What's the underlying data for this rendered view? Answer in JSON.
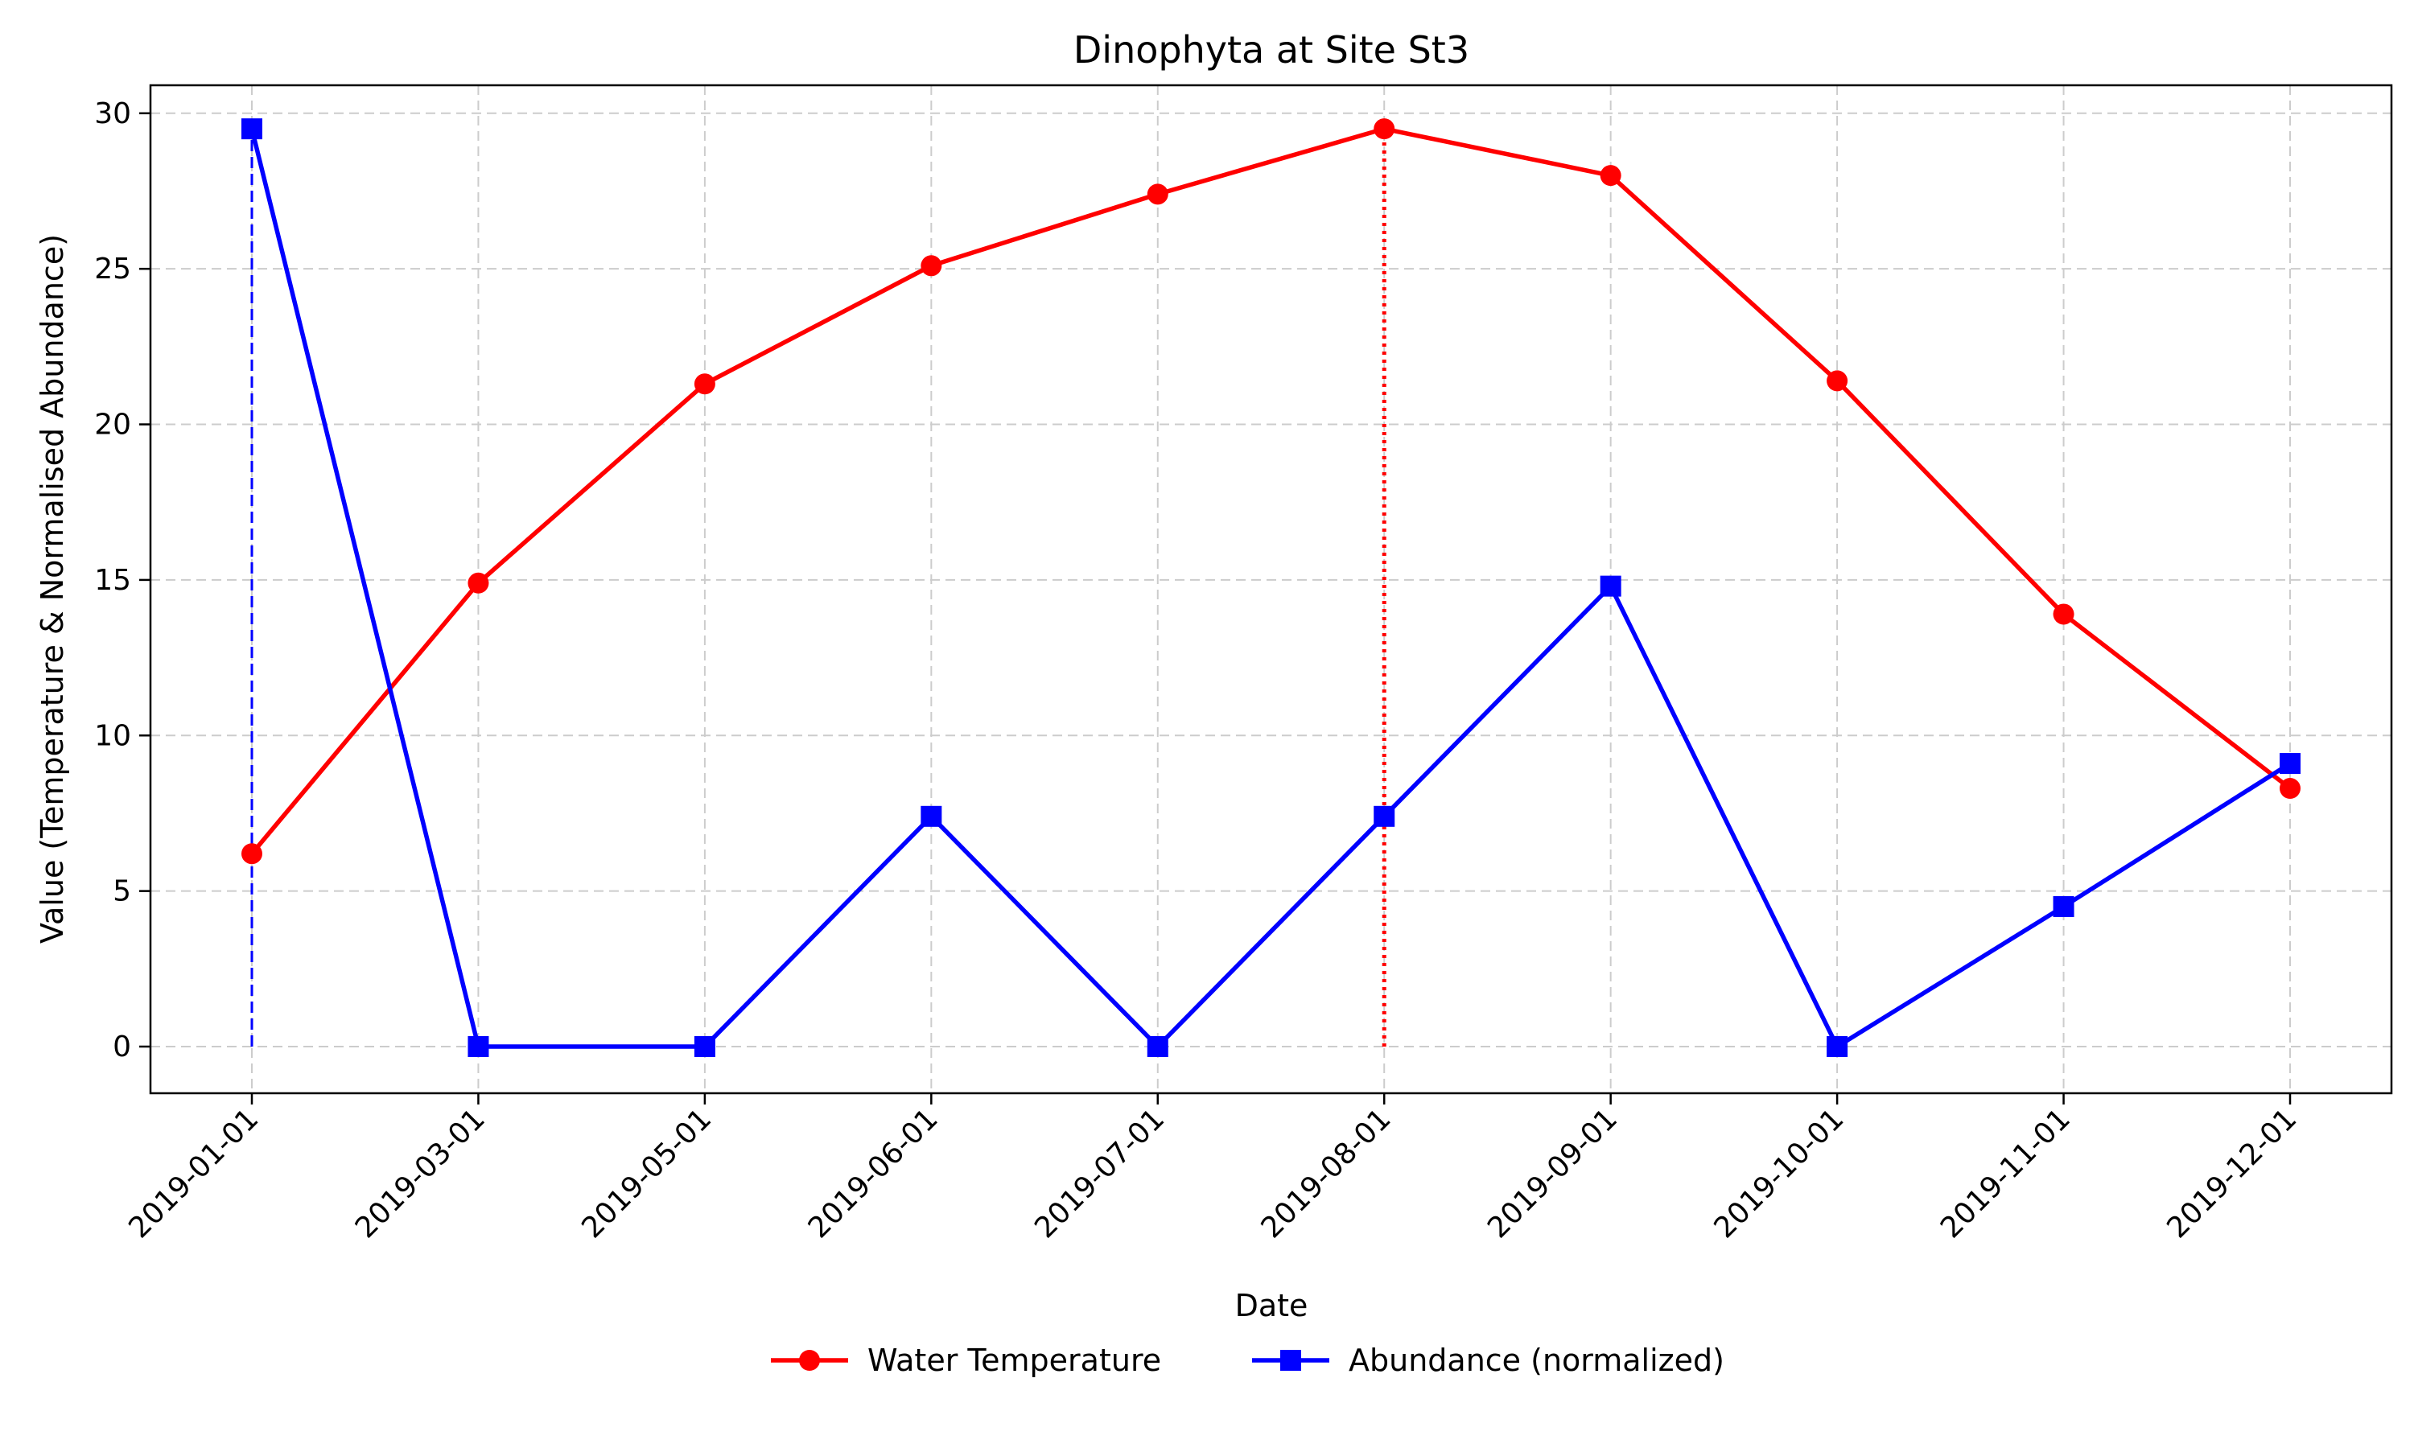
{
  "chart_data": {
    "type": "line",
    "title": "Dinophyta at Site St3",
    "xlabel": "Date",
    "ylabel": "Value (Temperature & Normalised Abundance)",
    "categories": [
      "2019-01-01",
      "2019-03-01",
      "2019-05-01",
      "2019-06-01",
      "2019-07-01",
      "2019-08-01",
      "2019-09-01",
      "2019-10-01",
      "2019-11-01",
      "2019-12-01"
    ],
    "ylim": [
      -1.5,
      30.9
    ],
    "yticks": [
      0,
      5,
      10,
      15,
      20,
      25,
      30
    ],
    "grid": true,
    "legend_position": "bottom-center",
    "series": [
      {
        "name": "Water Temperature",
        "color": "#ff0000",
        "marker": "circle",
        "values": [
          6.2,
          14.9,
          21.3,
          25.1,
          27.4,
          29.5,
          28.0,
          21.4,
          13.9,
          8.3
        ]
      },
      {
        "name": "Abundance (normalized)",
        "color": "#0000ff",
        "marker": "square",
        "values": [
          29.5,
          0.0,
          0.0,
          7.4,
          0.0,
          7.4,
          14.8,
          0.0,
          4.5,
          9.1
        ]
      }
    ],
    "annotations": [
      {
        "style": "dashed",
        "color": "#0000ff",
        "x": "2019-01-01",
        "y_from": 0,
        "y_to": 29.5
      },
      {
        "style": "dotted",
        "color": "#ff0000",
        "x": "2019-08-01",
        "y_from": 0,
        "y_to": 29.5
      }
    ]
  }
}
